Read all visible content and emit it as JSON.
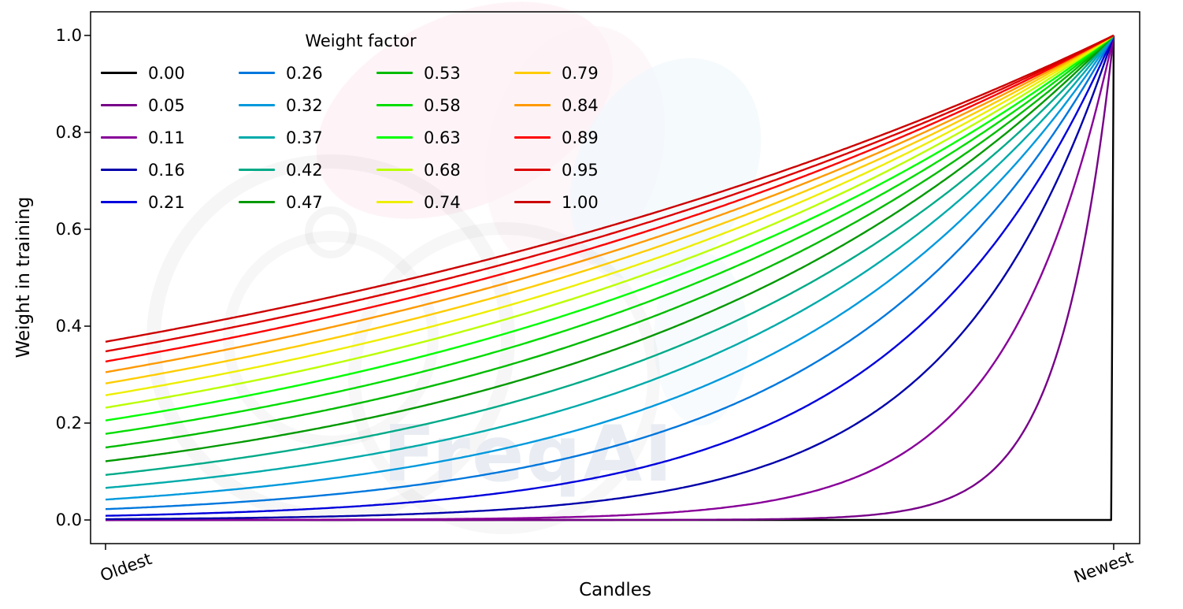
{
  "figure": {
    "background": "#ffffff",
    "watermark_text": "FreqAI"
  },
  "chart_data": {
    "type": "line",
    "title": "",
    "xlabel": "Candles",
    "ylabel": "Weight in training",
    "xtick_labels": [
      "Oldest",
      "Newest"
    ],
    "yticks": [
      0.0,
      0.2,
      0.4,
      0.6,
      0.8,
      1.0
    ],
    "ytick_labels": [
      "0.0",
      "0.2",
      "0.4",
      "0.6",
      "0.8",
      "1.0"
    ],
    "ylim": [
      0.0,
      1.0
    ],
    "grid": false,
    "legend": {
      "title": "Weight factor",
      "columns": 4,
      "rows": 5,
      "order": "column-major",
      "location": "upper left",
      "frame": false
    },
    "formula": "weight(t) = exp(-(1 - t) / weight_factor), t = 0 at Oldest candle, t = 1 at Newest candle; all curves converge to weight 1 at Newest",
    "x_samples": [
      0,
      0.1,
      0.2,
      0.3,
      0.4,
      0.5,
      0.6,
      0.7,
      0.8,
      0.9,
      1.0
    ],
    "series": [
      {
        "label": "0.00",
        "weight_factor": 0.0,
        "color": "#000000",
        "y_samples": [
          0,
          0,
          0,
          0,
          0,
          0,
          0,
          0,
          0,
          0,
          1
        ]
      },
      {
        "label": "0.05",
        "weight_factor": 0.0526,
        "color": "#770088",
        "y_samples": [
          0,
          0,
          0,
          0,
          0,
          0,
          0.001,
          0.003,
          0.022,
          0.15,
          1
        ]
      },
      {
        "label": "0.11",
        "weight_factor": 0.1053,
        "color": "#880099",
        "y_samples": [
          0,
          0,
          0.001,
          0.001,
          0.003,
          0.009,
          0.022,
          0.058,
          0.15,
          0.387,
          1
        ]
      },
      {
        "label": "0.16",
        "weight_factor": 0.1579,
        "color": "#0000aa",
        "y_samples": [
          0.002,
          0.003,
          0.006,
          0.012,
          0.022,
          0.042,
          0.079,
          0.15,
          0.282,
          0.531,
          1
        ]
      },
      {
        "label": "0.21",
        "weight_factor": 0.2105,
        "color": "#0000dd",
        "y_samples": [
          0.009,
          0.014,
          0.022,
          0.036,
          0.058,
          0.093,
          0.15,
          0.241,
          0.387,
          0.622,
          1
        ]
      },
      {
        "label": "0.26",
        "weight_factor": 0.2632,
        "color": "#0077dd",
        "y_samples": [
          0.022,
          0.033,
          0.048,
          0.07,
          0.102,
          0.15,
          0.219,
          0.32,
          0.468,
          0.684,
          1
        ]
      },
      {
        "label": "0.32",
        "weight_factor": 0.3158,
        "color": "#0099dd",
        "y_samples": [
          0.042,
          0.058,
          0.079,
          0.109,
          0.15,
          0.205,
          0.282,
          0.387,
          0.531,
          0.729,
          1
        ]
      },
      {
        "label": "0.37",
        "weight_factor": 0.3684,
        "color": "#00aaaa",
        "y_samples": [
          0.066,
          0.087,
          0.114,
          0.15,
          0.196,
          0.257,
          0.338,
          0.443,
          0.581,
          0.762,
          1
        ]
      },
      {
        "label": "0.42",
        "weight_factor": 0.4211,
        "color": "#00aa88",
        "y_samples": [
          0.093,
          0.118,
          0.15,
          0.19,
          0.241,
          0.305,
          0.387,
          0.49,
          0.622,
          0.789,
          1
        ]
      },
      {
        "label": "0.47",
        "weight_factor": 0.4737,
        "color": "#009900",
        "y_samples": [
          0.121,
          0.15,
          0.185,
          0.228,
          0.282,
          0.348,
          0.43,
          0.531,
          0.656,
          0.81,
          1
        ]
      },
      {
        "label": "0.53",
        "weight_factor": 0.5263,
        "color": "#00bb00",
        "y_samples": [
          0.15,
          0.181,
          0.219,
          0.264,
          0.32,
          0.387,
          0.468,
          0.566,
          0.684,
          0.827,
          1
        ]
      },
      {
        "label": "0.58",
        "weight_factor": 0.5789,
        "color": "#00dd00",
        "y_samples": [
          0.178,
          0.211,
          0.251,
          0.298,
          0.355,
          0.422,
          0.501,
          0.596,
          0.708,
          0.841,
          1
        ]
      },
      {
        "label": "0.63",
        "weight_factor": 0.6316,
        "color": "#00ff00",
        "y_samples": [
          0.205,
          0.241,
          0.282,
          0.33,
          0.387,
          0.453,
          0.531,
          0.622,
          0.729,
          0.854,
          1
        ]
      },
      {
        "label": "0.68",
        "weight_factor": 0.6842,
        "color": "#bbff00",
        "y_samples": [
          0.232,
          0.268,
          0.311,
          0.359,
          0.416,
          0.482,
          0.557,
          0.645,
          0.747,
          0.864,
          1
        ]
      },
      {
        "label": "0.74",
        "weight_factor": 0.7368,
        "color": "#eeee00",
        "y_samples": [
          0.257,
          0.295,
          0.338,
          0.387,
          0.443,
          0.507,
          0.581,
          0.666,
          0.762,
          0.873,
          1
        ]
      },
      {
        "label": "0.79",
        "weight_factor": 0.7895,
        "color": "#ffcc00",
        "y_samples": [
          0.282,
          0.32,
          0.363,
          0.412,
          0.468,
          0.531,
          0.603,
          0.684,
          0.776,
          0.881,
          1
        ]
      },
      {
        "label": "0.84",
        "weight_factor": 0.8421,
        "color": "#ff9900",
        "y_samples": [
          0.305,
          0.344,
          0.387,
          0.435,
          0.49,
          0.552,
          0.622,
          0.7,
          0.789,
          0.888,
          1
        ]
      },
      {
        "label": "0.89",
        "weight_factor": 0.8947,
        "color": "#ff0000",
        "y_samples": [
          0.327,
          0.366,
          0.409,
          0.457,
          0.511,
          0.572,
          0.639,
          0.715,
          0.8,
          0.894,
          1
        ]
      },
      {
        "label": "0.95",
        "weight_factor": 0.9474,
        "color": "#dd0000",
        "y_samples": [
          0.348,
          0.387,
          0.43,
          0.478,
          0.531,
          0.59,
          0.656,
          0.729,
          0.81,
          0.9,
          1
        ]
      },
      {
        "label": "1.00",
        "weight_factor": 1.0,
        "color": "#cc0000",
        "y_samples": [
          0.368,
          0.407,
          0.449,
          0.497,
          0.549,
          0.607,
          0.67,
          0.741,
          0.819,
          0.905,
          1
        ]
      }
    ]
  }
}
